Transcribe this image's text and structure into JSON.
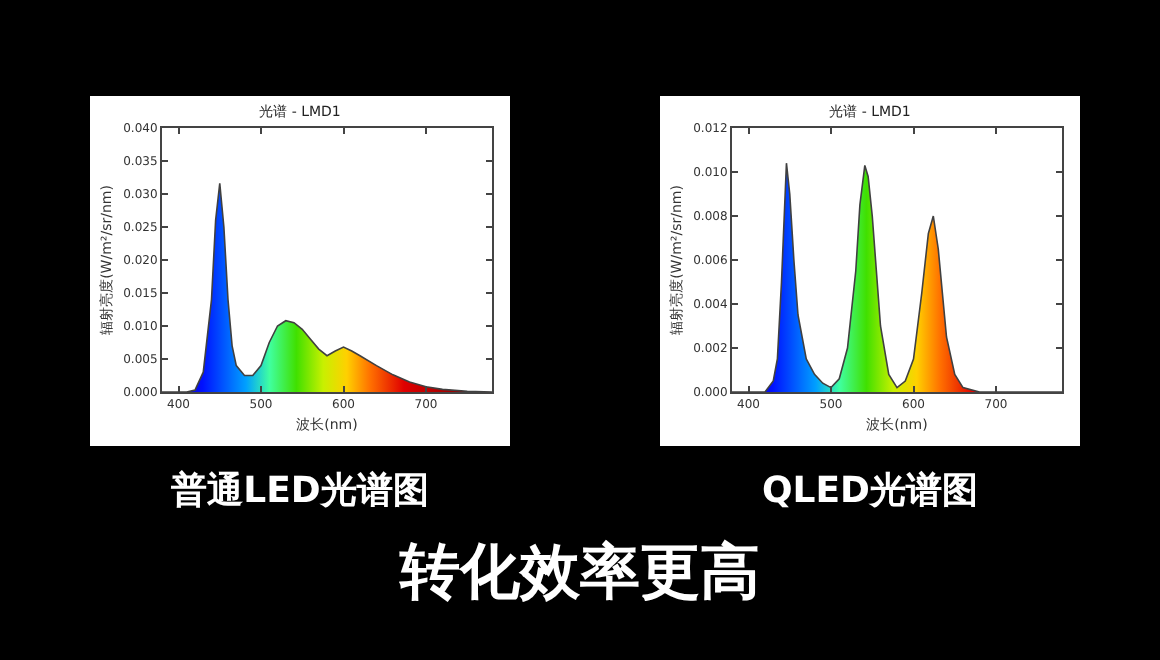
{
  "chart_data": [
    {
      "type": "area",
      "title": "光谱 - LMD1",
      "xlabel": "波长(nm)",
      "ylabel": "辐射亮度(W/m²/sr/nm)",
      "annotations": [
        "普通LED光谱图"
      ],
      "x": [
        380,
        410,
        420,
        430,
        440,
        445,
        450,
        455,
        460,
        465,
        470,
        480,
        490,
        500,
        510,
        520,
        530,
        540,
        550,
        560,
        570,
        580,
        590,
        600,
        610,
        620,
        640,
        660,
        680,
        700,
        720,
        750,
        780
      ],
      "series": [
        {
          "color": "#404040",
          "values": [
            0,
            0,
            0.0003,
            0.003,
            0.014,
            0.026,
            0.0316,
            0.025,
            0.014,
            0.007,
            0.004,
            0.0025,
            0.0025,
            0.004,
            0.0075,
            0.01,
            0.0108,
            0.0105,
            0.0095,
            0.008,
            0.0065,
            0.0055,
            0.0062,
            0.0068,
            0.0062,
            0.0055,
            0.004,
            0.0026,
            0.0015,
            0.0008,
            0.0004,
            0.0001,
            0
          ]
        }
      ],
      "xlim": [
        380,
        780
      ],
      "xticks": [
        400,
        500,
        600,
        700
      ],
      "ylim": [
        0,
        0.04
      ],
      "yticks": [
        {
          "value": 0,
          "label": "0.000"
        },
        {
          "value": 0.005,
          "label": "0.005"
        },
        {
          "value": 0.01,
          "label": "0.010"
        },
        {
          "value": 0.015,
          "label": "0.015"
        },
        {
          "value": 0.02,
          "label": "0.020"
        },
        {
          "value": 0.025,
          "label": "0.025"
        },
        {
          "value": 0.03,
          "label": "0.030"
        },
        {
          "value": 0.035,
          "label": "0.035"
        },
        {
          "value": 0.04,
          "label": "0.040"
        }
      ],
      "grid": false
    },
    {
      "type": "area",
      "title": "光谱 - LMD1",
      "xlabel": "波长(nm)",
      "ylabel": "辐射亮度(W/m²/sr/nm)",
      "annotations": [
        "QLED光谱图"
      ],
      "x": [
        380,
        420,
        430,
        435,
        440,
        446,
        450,
        455,
        460,
        470,
        480,
        490,
        500,
        510,
        520,
        530,
        535,
        541,
        545,
        550,
        555,
        560,
        570,
        580,
        590,
        600,
        610,
        618,
        624,
        630,
        635,
        640,
        650,
        660,
        680,
        780
      ],
      "series": [
        {
          "color": "#404040",
          "values": [
            0,
            0,
            0.0005,
            0.0015,
            0.005,
            0.0104,
            0.009,
            0.006,
            0.0035,
            0.0015,
            0.0008,
            0.0004,
            0.0002,
            0.0006,
            0.002,
            0.0055,
            0.0085,
            0.0103,
            0.0098,
            0.008,
            0.0055,
            0.003,
            0.0008,
            0.0002,
            0.0005,
            0.0015,
            0.0045,
            0.0072,
            0.008,
            0.0065,
            0.0045,
            0.0025,
            0.0008,
            0.0002,
            0,
            0
          ]
        }
      ],
      "xlim": [
        380,
        780
      ],
      "xticks": [
        400,
        500,
        600,
        700
      ],
      "ylim": [
        0,
        0.012
      ],
      "yticks": [
        {
          "value": 0,
          "label": "0.000"
        },
        {
          "value": 0.002,
          "label": "0.002"
        },
        {
          "value": 0.004,
          "label": "0.004"
        },
        {
          "value": 0.006,
          "label": "0.006"
        },
        {
          "value": 0.008,
          "label": "0.008"
        },
        {
          "value": 0.01,
          "label": "0.010"
        },
        {
          "value": 0.012,
          "label": "0.012"
        }
      ],
      "grid": false
    },
    {
      "type": "other",
      "title": "转化效率更高"
    }
  ]
}
